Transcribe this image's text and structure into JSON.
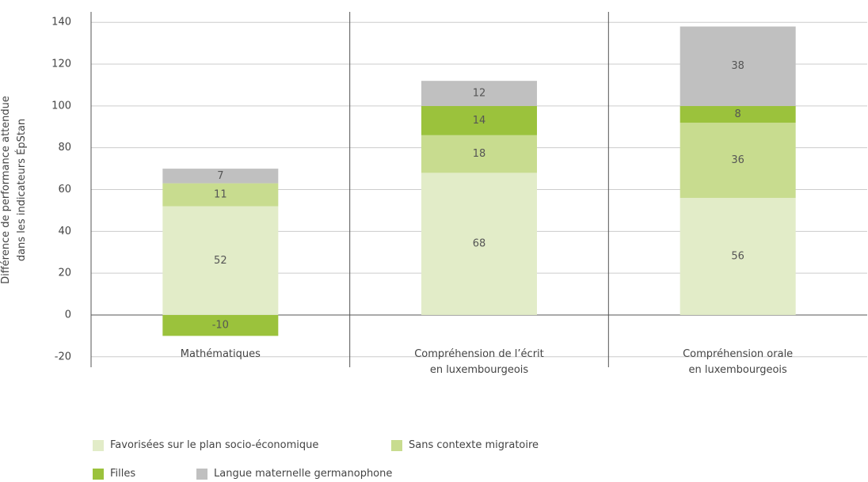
{
  "chart_data": {
    "type": "stacked_bar",
    "ylabel": "Différence de performance attendue\ndans les indicateurs ÉpStan",
    "categories": [
      "Mathématiques",
      "Compréhension de l’écrit\nen luxembourgeois",
      "Compréhension orale\nen luxembourgeois"
    ],
    "series": [
      {
        "name": "Favorisées sur le plan socio-économique",
        "color": "#e2ecc8",
        "values": [
          52,
          68,
          56
        ]
      },
      {
        "name": "Sans contexte migratoire",
        "color": "#c8dc8f",
        "values": [
          11,
          18,
          36
        ]
      },
      {
        "name": "Filles",
        "color": "#9bc23c",
        "values": [
          -10,
          14,
          8
        ]
      },
      {
        "name": "Langue maternelle germanophone",
        "color": "#c0c0c0",
        "values": [
          7,
          12,
          38
        ]
      }
    ],
    "ylim": [
      -25,
      145
    ],
    "yticks": [
      -20,
      0,
      20,
      40,
      60,
      80,
      100,
      120,
      140
    ],
    "grid": true
  }
}
